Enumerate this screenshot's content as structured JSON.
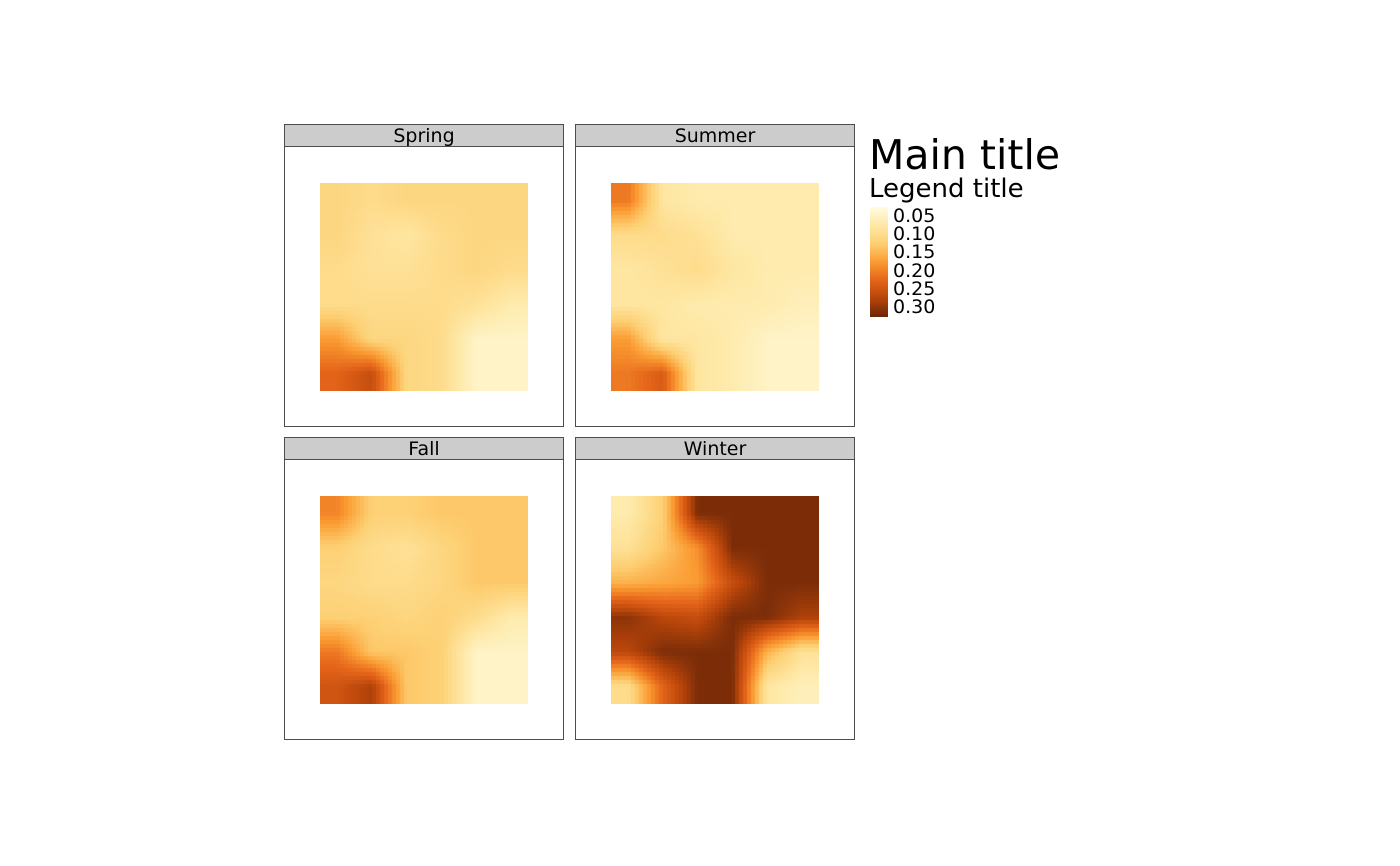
{
  "chart_data": {
    "type": "heatmap",
    "title": "Main title",
    "legend": {
      "title": "Legend title",
      "placement": "right",
      "ticks": [
        "0.05",
        "0.10",
        "0.15",
        "0.20",
        "0.25",
        "0.30"
      ],
      "range": [
        0.03,
        0.31
      ],
      "palette": [
        "#fffbe0",
        "#fee8a5",
        "#fdcf72",
        "#fb9c33",
        "#e5651a",
        "#b8450a",
        "#6b2708"
      ]
    },
    "panels": [
      {
        "name": "Spring",
        "grid": [
          [
            0.11,
            0.1,
            0.11,
            0.11,
            0.11,
            0.11
          ],
          [
            0.11,
            0.09,
            0.08,
            0.1,
            0.11,
            0.11
          ],
          [
            0.1,
            0.09,
            0.09,
            0.1,
            0.11,
            0.1
          ],
          [
            0.1,
            0.1,
            0.1,
            0.1,
            0.09,
            0.07
          ],
          [
            0.17,
            0.11,
            0.11,
            0.1,
            0.05,
            0.05
          ],
          [
            0.22,
            0.25,
            0.11,
            0.1,
            0.05,
            0.05
          ]
        ]
      },
      {
        "name": "Summer",
        "grid": [
          [
            0.2,
            0.08,
            0.07,
            0.07,
            0.07,
            0.07
          ],
          [
            0.1,
            0.1,
            0.09,
            0.07,
            0.07,
            0.07
          ],
          [
            0.08,
            0.09,
            0.1,
            0.08,
            0.07,
            0.07
          ],
          [
            0.08,
            0.08,
            0.07,
            0.07,
            0.07,
            0.06
          ],
          [
            0.17,
            0.08,
            0.08,
            0.07,
            0.05,
            0.05
          ],
          [
            0.2,
            0.23,
            0.08,
            0.07,
            0.05,
            0.05
          ]
        ]
      },
      {
        "name": "Fall",
        "grid": [
          [
            0.19,
            0.12,
            0.12,
            0.13,
            0.13,
            0.13
          ],
          [
            0.12,
            0.1,
            0.09,
            0.11,
            0.13,
            0.13
          ],
          [
            0.11,
            0.1,
            0.1,
            0.11,
            0.13,
            0.13
          ],
          [
            0.12,
            0.12,
            0.11,
            0.12,
            0.1,
            0.07
          ],
          [
            0.2,
            0.13,
            0.13,
            0.12,
            0.05,
            0.05
          ],
          [
            0.24,
            0.27,
            0.13,
            0.12,
            0.05,
            0.05
          ]
        ]
      },
      {
        "name": "Winter",
        "grid": [
          [
            0.07,
            0.12,
            0.3,
            0.3,
            0.3,
            0.3
          ],
          [
            0.09,
            0.13,
            0.18,
            0.3,
            0.3,
            0.3
          ],
          [
            0.15,
            0.16,
            0.17,
            0.25,
            0.3,
            0.3
          ],
          [
            0.29,
            0.26,
            0.25,
            0.3,
            0.3,
            0.27
          ],
          [
            0.26,
            0.3,
            0.3,
            0.3,
            0.15,
            0.09
          ],
          [
            0.1,
            0.22,
            0.3,
            0.3,
            0.08,
            0.06
          ]
        ]
      }
    ]
  }
}
